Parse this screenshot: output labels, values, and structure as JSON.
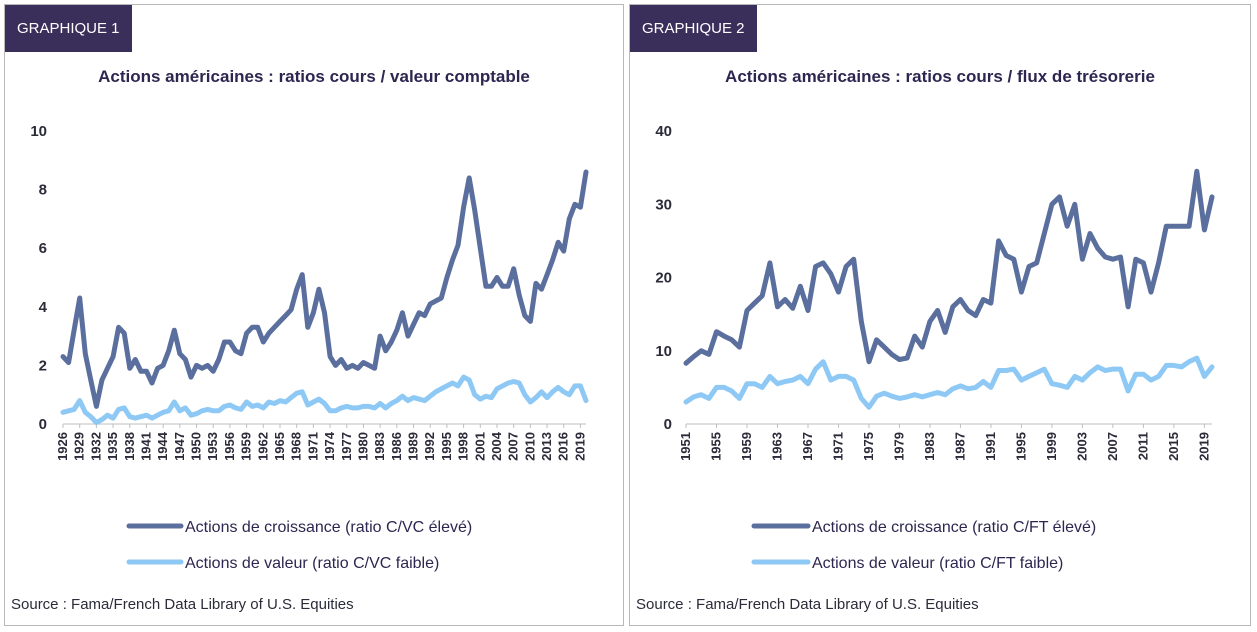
{
  "chart_data": [
    {
      "type": "line",
      "tag": "GRAPHIQUE 1",
      "title": "Actions américaines : ratios cours / valeur comptable",
      "source": "Source : Fama/French Data Library of U.S. Equities",
      "ylim": [
        0,
        10
      ],
      "yticks": [
        0,
        2,
        4,
        6,
        8,
        10
      ],
      "xlim": [
        1926,
        2020
      ],
      "xticks": [
        1926,
        1929,
        1932,
        1935,
        1938,
        1941,
        1944,
        1947,
        1950,
        1953,
        1956,
        1959,
        1962,
        1965,
        1968,
        1971,
        1974,
        1977,
        1980,
        1983,
        1986,
        1989,
        1992,
        1995,
        1998,
        2001,
        2004,
        2007,
        2010,
        2013,
        2016,
        2019
      ],
      "grid": false,
      "legend_position": "bottom",
      "x": [
        1926,
        1927,
        1928,
        1929,
        1930,
        1931,
        1932,
        1933,
        1934,
        1935,
        1936,
        1937,
        1938,
        1939,
        1940,
        1941,
        1942,
        1943,
        1944,
        1945,
        1946,
        1947,
        1948,
        1949,
        1950,
        1951,
        1952,
        1953,
        1954,
        1955,
        1956,
        1957,
        1958,
        1959,
        1960,
        1961,
        1962,
        1963,
        1964,
        1965,
        1966,
        1967,
        1968,
        1969,
        1970,
        1971,
        1972,
        1973,
        1974,
        1975,
        1976,
        1977,
        1978,
        1979,
        1980,
        1981,
        1982,
        1983,
        1984,
        1985,
        1986,
        1987,
        1988,
        1989,
        1990,
        1991,
        1992,
        1993,
        1994,
        1995,
        1996,
        1997,
        1998,
        1999,
        2000,
        2001,
        2002,
        2003,
        2004,
        2005,
        2006,
        2007,
        2008,
        2009,
        2010,
        2011,
        2012,
        2013,
        2014,
        2015,
        2016,
        2017,
        2018,
        2019,
        2020
      ],
      "series": [
        {
          "name": "Actions de croissance (ratio C/VC élevé)",
          "color": "#5b6f9e",
          "values": [
            2.3,
            2.1,
            3.2,
            4.3,
            2.4,
            1.5,
            0.6,
            1.5,
            1.9,
            2.3,
            3.3,
            3.1,
            1.9,
            2.2,
            1.8,
            1.8,
            1.4,
            1.9,
            2.0,
            2.5,
            3.2,
            2.4,
            2.2,
            1.6,
            2.0,
            1.9,
            2.0,
            1.8,
            2.2,
            2.8,
            2.8,
            2.5,
            2.4,
            3.1,
            3.3,
            3.3,
            2.8,
            3.1,
            3.3,
            3.5,
            3.7,
            3.9,
            4.6,
            5.1,
            3.3,
            3.8,
            4.6,
            3.8,
            2.3,
            2.0,
            2.2,
            1.9,
            2.0,
            1.9,
            2.1,
            2.0,
            1.9,
            3.0,
            2.5,
            2.8,
            3.2,
            3.8,
            3.0,
            3.4,
            3.8,
            3.7,
            4.1,
            4.2,
            4.3,
            5.0,
            5.6,
            6.1,
            7.4,
            8.4,
            7.3,
            6.0,
            4.7,
            4.7,
            5.0,
            4.7,
            4.7,
            5.3,
            4.4,
            3.7,
            3.5,
            4.8,
            4.6,
            5.1,
            5.6,
            6.2,
            5.9,
            7.0,
            7.5,
            7.4,
            8.6
          ]
        },
        {
          "name": "Actions de valeur (ratio C/VC faible)",
          "color": "#8ec9f5",
          "values": [
            0.4,
            0.45,
            0.5,
            0.8,
            0.4,
            0.25,
            0.05,
            0.15,
            0.3,
            0.2,
            0.5,
            0.55,
            0.25,
            0.2,
            0.25,
            0.3,
            0.2,
            0.3,
            0.4,
            0.45,
            0.75,
            0.45,
            0.55,
            0.3,
            0.35,
            0.45,
            0.5,
            0.45,
            0.45,
            0.6,
            0.65,
            0.55,
            0.5,
            0.75,
            0.6,
            0.65,
            0.55,
            0.75,
            0.7,
            0.8,
            0.75,
            0.9,
            1.05,
            1.1,
            0.65,
            0.75,
            0.85,
            0.7,
            0.45,
            0.45,
            0.55,
            0.6,
            0.55,
            0.55,
            0.6,
            0.6,
            0.55,
            0.7,
            0.55,
            0.7,
            0.8,
            0.95,
            0.8,
            0.9,
            0.85,
            0.8,
            0.95,
            1.1,
            1.2,
            1.3,
            1.4,
            1.3,
            1.6,
            1.5,
            1.0,
            0.85,
            0.95,
            0.9,
            1.2,
            1.3,
            1.4,
            1.45,
            1.4,
            1.0,
            0.75,
            0.9,
            1.1,
            0.9,
            1.1,
            1.25,
            1.1,
            1.0,
            1.3,
            1.3,
            0.8
          ]
        }
      ]
    },
    {
      "type": "line",
      "tag": "GRAPHIQUE 2",
      "title": "Actions américaines : ratios cours / flux de trésorerie",
      "source": "Source : Fama/French Data Library of U.S. Equities",
      "ylim": [
        0,
        40
      ],
      "yticks": [
        0,
        10,
        20,
        30,
        40
      ],
      "xlim": [
        1951,
        2020
      ],
      "xticks": [
        1951,
        1955,
        1959,
        1963,
        1967,
        1971,
        1975,
        1979,
        1983,
        1987,
        1991,
        1995,
        1999,
        2003,
        2007,
        2011,
        2015,
        2019
      ],
      "grid": false,
      "legend_position": "bottom",
      "x": [
        1951,
        1952,
        1953,
        1954,
        1955,
        1956,
        1957,
        1958,
        1959,
        1960,
        1961,
        1962,
        1963,
        1964,
        1965,
        1966,
        1967,
        1968,
        1969,
        1970,
        1971,
        1972,
        1973,
        1974,
        1975,
        1976,
        1977,
        1978,
        1979,
        1980,
        1981,
        1982,
        1983,
        1984,
        1985,
        1986,
        1987,
        1988,
        1989,
        1990,
        1991,
        1992,
        1993,
        1994,
        1995,
        1996,
        1997,
        1998,
        1999,
        2000,
        2001,
        2002,
        2003,
        2004,
        2005,
        2006,
        2007,
        2008,
        2009,
        2010,
        2011,
        2012,
        2013,
        2014,
        2015,
        2016,
        2017,
        2018,
        2019,
        2020
      ],
      "series": [
        {
          "name": "Actions de croissance (ratio C/FT élevé)",
          "color": "#5b6f9e",
          "values": [
            8.3,
            9.2,
            10.0,
            9.5,
            12.6,
            12.0,
            11.5,
            10.5,
            15.5,
            16.5,
            17.5,
            22.0,
            16.0,
            17.0,
            15.8,
            18.8,
            15.5,
            21.5,
            22.0,
            20.5,
            18.0,
            21.5,
            22.5,
            14.0,
            8.5,
            11.5,
            10.5,
            9.5,
            8.8,
            9.0,
            12.0,
            10.5,
            14.0,
            15.5,
            12.5,
            16.0,
            17.0,
            15.5,
            14.8,
            17.0,
            16.5,
            25.0,
            23.0,
            22.5,
            18.0,
            21.5,
            22.0,
            26.0,
            30.0,
            31.0,
            27.0,
            30.0,
            22.5,
            26.0,
            24.0,
            22.8,
            22.5,
            22.8,
            16.0,
            22.5,
            22.0,
            18.0,
            22.0,
            27.0,
            27.0,
            27.0,
            27.0,
            34.5,
            26.5,
            31.0
          ]
        },
        {
          "name": "Actions de valeur (ratio C/FT faible)",
          "color": "#8ec9f5",
          "values": [
            3.0,
            3.7,
            4.0,
            3.5,
            5.0,
            5.0,
            4.5,
            3.5,
            5.5,
            5.5,
            5.0,
            6.5,
            5.5,
            5.8,
            6.0,
            6.5,
            5.5,
            7.5,
            8.5,
            6.0,
            6.5,
            6.5,
            6.0,
            3.5,
            2.3,
            3.8,
            4.2,
            3.8,
            3.5,
            3.7,
            4.0,
            3.7,
            4.0,
            4.3,
            4.0,
            4.8,
            5.2,
            4.8,
            5.0,
            5.8,
            5.0,
            7.3,
            7.3,
            7.5,
            6.0,
            6.5,
            7.0,
            7.5,
            5.5,
            5.3,
            5.0,
            6.5,
            6.0,
            7.0,
            7.8,
            7.3,
            7.5,
            7.5,
            4.5,
            6.8,
            6.8,
            6.0,
            6.5,
            8.0,
            8.0,
            7.8,
            8.5,
            9.0,
            6.5,
            7.8
          ]
        }
      ]
    }
  ]
}
